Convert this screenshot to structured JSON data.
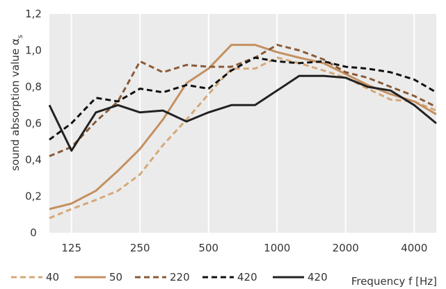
{
  "chart_data": {
    "type": "line",
    "ylabel": "sound absorption value α",
    "ylabel_subscript": "s",
    "xlabel": "Frequency f [Hz]",
    "x": [
      100,
      125,
      160,
      200,
      250,
      315,
      400,
      500,
      630,
      800,
      1000,
      1250,
      1600,
      2000,
      2500,
      3150,
      4000,
      5000
    ],
    "x_tick_labels": [
      {
        "value": 125,
        "label": "125"
      },
      {
        "value": 250,
        "label": "250"
      },
      {
        "value": 500,
        "label": "500"
      },
      {
        "value": 1000,
        "label": "1000"
      },
      {
        "value": 2000,
        "label": "2000"
      },
      {
        "value": 4000,
        "label": "4000"
      }
    ],
    "x_scale": "log",
    "xlim": [
      100,
      5000
    ],
    "ylim": [
      0,
      1.2
    ],
    "y_ticks": [
      {
        "value": 0,
        "label": "0"
      },
      {
        "value": 0.2,
        "label": "0,2"
      },
      {
        "value": 0.4,
        "label": "0,4"
      },
      {
        "value": 0.6,
        "label": "0,6"
      },
      {
        "value": 0.8,
        "label": "0,8"
      },
      {
        "value": 1.0,
        "label": "1,0"
      },
      {
        "value": 1.2,
        "label": "1,2"
      }
    ],
    "grid": "vertical",
    "background": "#ebebeb",
    "legend_position": "bottom",
    "series": [
      {
        "name": "40",
        "color": "#d4a878",
        "dash": "dashed",
        "values": [
          0.08,
          0.13,
          0.18,
          0.23,
          0.32,
          0.48,
          0.62,
          0.76,
          0.9,
          0.9,
          0.96,
          0.93,
          0.89,
          0.85,
          0.79,
          0.73,
          0.72,
          0.67
        ]
      },
      {
        "name": "50",
        "color": "#c49060",
        "dash": "solid",
        "values": [
          0.13,
          0.16,
          0.23,
          0.34,
          0.46,
          0.62,
          0.82,
          0.9,
          1.03,
          1.03,
          0.99,
          0.96,
          0.93,
          0.87,
          0.81,
          0.76,
          0.72,
          0.65
        ]
      },
      {
        "name": "220",
        "color": "#8a5a38",
        "dash": "dashed",
        "values": [
          0.42,
          0.47,
          0.61,
          0.72,
          0.94,
          0.88,
          0.92,
          0.91,
          0.91,
          0.96,
          1.03,
          1.0,
          0.95,
          0.88,
          0.85,
          0.8,
          0.75,
          0.69
        ]
      },
      {
        "name": "420",
        "color": "#111111",
        "dash": "dashed",
        "values": [
          0.51,
          0.6,
          0.74,
          0.72,
          0.79,
          0.77,
          0.81,
          0.79,
          0.89,
          0.96,
          0.94,
          0.93,
          0.94,
          0.91,
          0.9,
          0.88,
          0.84,
          0.77
        ]
      },
      {
        "name": "420",
        "color": "#222222",
        "dash": "solid",
        "values": [
          0.7,
          0.45,
          0.66,
          0.7,
          0.66,
          0.67,
          0.61,
          0.66,
          0.7,
          0.7,
          0.78,
          0.86,
          0.86,
          0.85,
          0.8,
          0.78,
          0.7,
          0.6
        ]
      }
    ]
  }
}
